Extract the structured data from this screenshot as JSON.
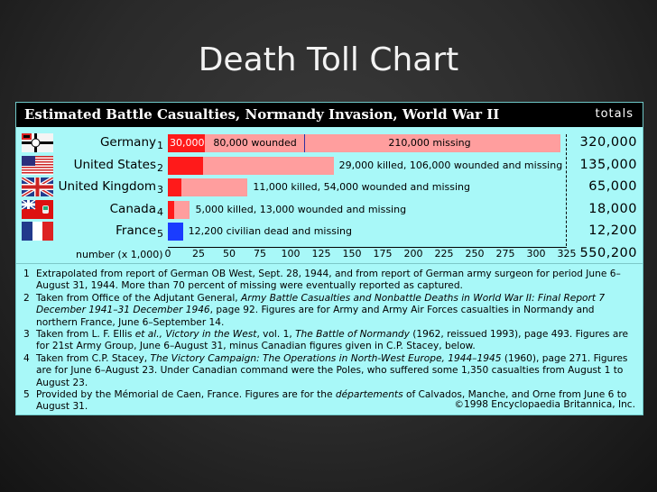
{
  "slide_title": "Death Toll Chart",
  "colors": {
    "killed": "#ff1a1a",
    "wounded_missing": "#ff9e9e",
    "civilian": "#1a3cff",
    "panel": "#a8f8f8"
  },
  "chart_data": {
    "type": "bar",
    "title": "Estimated Battle Casualties, Normandy Invasion, World War II",
    "totals_header": "totals",
    "xlabel": "number (x 1,000)",
    "xlim": [
      0,
      325
    ],
    "xticks": [
      "0",
      "25",
      "50",
      "75",
      "100",
      "125",
      "150",
      "175",
      "200",
      "225",
      "250",
      "275",
      "300",
      "325"
    ],
    "categories": [
      {
        "name": "Germany",
        "note": "1",
        "flag": "german-war-flag-icon",
        "total": "320,000",
        "segments": [
          {
            "value": 30,
            "color": "#ff1a1a",
            "label": "30,000",
            "label_pos": "inside"
          },
          {
            "value": 80,
            "color": "#ff9e9e",
            "label": "80,000 wounded",
            "label_pos": "inside"
          },
          {
            "value": 210,
            "color": "#ff9e9e",
            "label": "210,000 missing",
            "label_pos": "inside"
          }
        ]
      },
      {
        "name": "United States",
        "note": "2",
        "flag": "us-flag-icon",
        "total": "135,000",
        "segments": [
          {
            "value": 29,
            "color": "#ff1a1a",
            "label": ""
          },
          {
            "value": 106,
            "color": "#ff9e9e",
            "label": ""
          }
        ],
        "bar_label": "29,000 killed, 106,000 wounded and missing"
      },
      {
        "name": "United Kingdom",
        "note": "3",
        "flag": "uk-flag-icon",
        "total": "65,000",
        "segments": [
          {
            "value": 11,
            "color": "#ff1a1a",
            "label": ""
          },
          {
            "value": 54,
            "color": "#ff9e9e",
            "label": ""
          }
        ],
        "bar_label": "11,000 killed, 54,000 wounded and missing"
      },
      {
        "name": "Canada",
        "note": "4",
        "flag": "canada-red-ensign-icon",
        "total": "18,000",
        "segments": [
          {
            "value": 5,
            "color": "#ff1a1a",
            "label": ""
          },
          {
            "value": 13,
            "color": "#ff9e9e",
            "label": ""
          }
        ],
        "bar_label": "5,000 killed, 13,000 wounded and missing"
      },
      {
        "name": "France",
        "note": "5",
        "flag": "france-flag-icon",
        "total": "12,200",
        "segments": [
          {
            "value": 12.2,
            "color": "#1a3cff",
            "label": ""
          }
        ],
        "bar_label": "12,200 civilian dead and missing"
      }
    ],
    "grand_total": "550,200"
  },
  "notes": [
    {
      "n": "1",
      "parts": [
        {
          "t": "Extrapolated from report of German OB West, Sept. 28, 1944, and from report of German army surgeon for period June 6–August 31, 1944. More than 70 percent of missing were eventually reported as captured."
        }
      ]
    },
    {
      "n": "2",
      "parts": [
        {
          "t": "Taken from Office of the Adjutant General, "
        },
        {
          "t": "Army Battle Casualties and Nonbattle Deaths in World War II: Final Report 7 December 1941–31 December 1946",
          "i": true
        },
        {
          "t": ", page 92. Figures are for Army and Army Air Forces casualties in Normandy and northern France, June 6–September 14."
        }
      ]
    },
    {
      "n": "3",
      "parts": [
        {
          "t": "Taken from L. F. Ellis "
        },
        {
          "t": "et al., Victory in the West",
          "i": true
        },
        {
          "t": ", vol. 1, "
        },
        {
          "t": "The Battle of Normandy",
          "i": true
        },
        {
          "t": " (1962, reissued 1993), page 493. Figures are for 21st Army Group, June 6–August 31, minus Canadian figures given in C.P. Stacey, below."
        }
      ]
    },
    {
      "n": "4",
      "parts": [
        {
          "t": "Taken from C.P. Stacey, "
        },
        {
          "t": "The Victory Campaign: The Operations in North-West Europe, 1944–1945",
          "i": true
        },
        {
          "t": " (1960), page 271. Figures are for June 6–August 23. Under Canadian command were the Poles, who suffered some 1,350 casualties from August 1 to August 23."
        }
      ]
    },
    {
      "n": "5",
      "parts": [
        {
          "t": "Provided by the Mémorial de Caen, France. Figures are for the "
        },
        {
          "t": "départements",
          "i": true
        },
        {
          "t": " of Calvados, Manche, and Orne from June 6 to August 31."
        }
      ]
    }
  ],
  "credit": "©1998 Encyclopaedia Britannica, Inc."
}
